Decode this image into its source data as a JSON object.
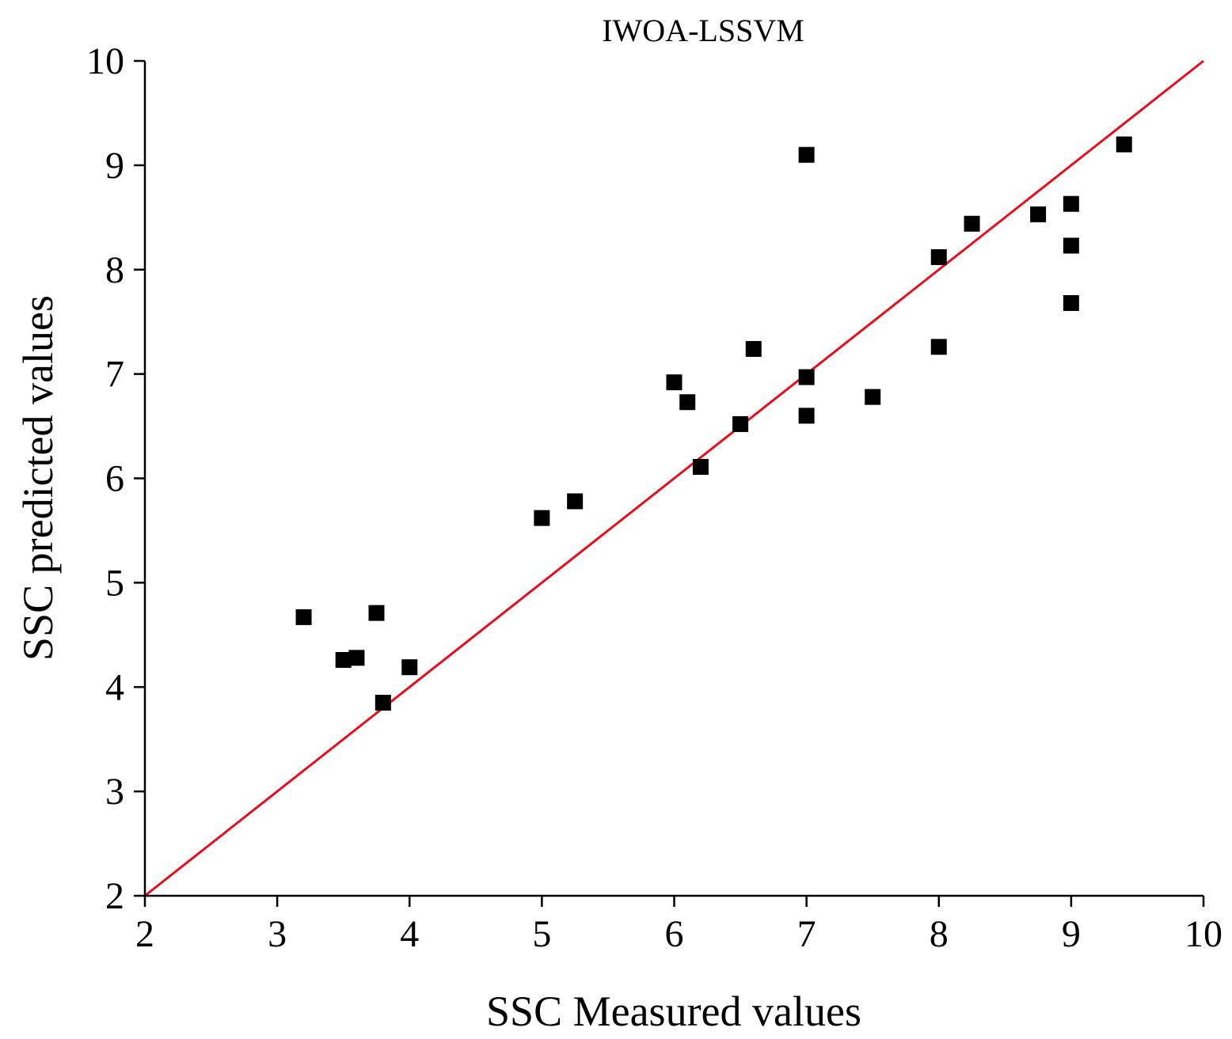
{
  "chart_data": {
    "type": "scatter",
    "title": "IWOA-LSSVM",
    "xlabel": "SSC Measured values",
    "ylabel": "SSC predicted values",
    "xlim": [
      2,
      10
    ],
    "ylim": [
      2,
      10
    ],
    "xticks": [
      "2",
      "3",
      "4",
      "5",
      "6",
      "7",
      "8",
      "9",
      "10"
    ],
    "yticks": [
      "2",
      "3",
      "4",
      "5",
      "6",
      "7",
      "8",
      "9",
      "10"
    ],
    "grid": false,
    "reference_line": {
      "x": [
        2,
        10
      ],
      "y": [
        2,
        10
      ],
      "color": "#e0101e"
    },
    "marker": {
      "shape": "square",
      "color": "#000000"
    },
    "points": [
      {
        "x": 3.2,
        "y": 4.67
      },
      {
        "x": 3.5,
        "y": 4.26
      },
      {
        "x": 3.6,
        "y": 4.28
      },
      {
        "x": 3.75,
        "y": 4.71
      },
      {
        "x": 3.8,
        "y": 3.85
      },
      {
        "x": 4.0,
        "y": 4.19
      },
      {
        "x": 5.0,
        "y": 5.62
      },
      {
        "x": 5.25,
        "y": 5.78
      },
      {
        "x": 6.0,
        "y": 6.92
      },
      {
        "x": 6.1,
        "y": 6.73
      },
      {
        "x": 6.2,
        "y": 6.11
      },
      {
        "x": 6.5,
        "y": 6.52
      },
      {
        "x": 6.6,
        "y": 7.24
      },
      {
        "x": 7.0,
        "y": 9.1
      },
      {
        "x": 7.0,
        "y": 6.97
      },
      {
        "x": 7.0,
        "y": 6.6
      },
      {
        "x": 7.5,
        "y": 6.78
      },
      {
        "x": 8.0,
        "y": 8.12
      },
      {
        "x": 8.0,
        "y": 7.26
      },
      {
        "x": 8.25,
        "y": 8.44
      },
      {
        "x": 8.75,
        "y": 8.53
      },
      {
        "x": 9.0,
        "y": 8.63
      },
      {
        "x": 9.0,
        "y": 8.23
      },
      {
        "x": 9.0,
        "y": 7.68
      },
      {
        "x": 9.4,
        "y": 9.2
      }
    ]
  }
}
